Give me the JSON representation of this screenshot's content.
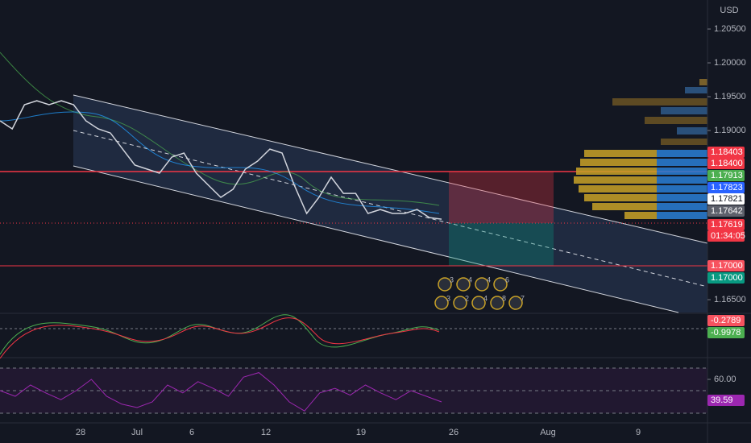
{
  "chart_data": {
    "type": "line",
    "currency": "USD",
    "color": "#d1d4dc",
    "values": [
      1.19143,
      1.19024,
      1.19381,
      1.1944,
      1.19381,
      1.1944,
      1.19381,
      1.19143,
      1.19024,
      1.18964,
      1.18726,
      1.18488,
      1.18429,
      1.18369,
      1.18607,
      1.18667,
      1.18369,
      1.1819,
      1.18012,
      1.18131,
      1.18429,
      1.18548,
      1.18726,
      1.18667,
      1.1819,
      1.17774,
      1.18012,
      1.1831,
      1.18071,
      1.18071,
      1.17774,
      1.17833,
      1.17774,
      1.17774,
      1.17833,
      1.17714,
      1.1769
    ],
    "ylim": [
      1.1631,
      1.20929
    ],
    "yticks": [
      {
        "value": 1.205,
        "label": "1.20500"
      },
      {
        "value": 1.2,
        "label": "1.20000"
      },
      {
        "value": 1.195,
        "label": "1.19500"
      },
      {
        "value": 1.19,
        "label": "1.19000"
      },
      {
        "value": 1.165,
        "label": "1.16500"
      }
    ],
    "x_labels": [
      "28",
      "Jul",
      "6",
      "12",
      "19",
      "26",
      "Aug",
      "9"
    ],
    "price_tags": [
      {
        "label": "1.18403",
        "color": "#f23645"
      },
      {
        "label": "1.18400",
        "color": "#f23645"
      },
      {
        "label": "1.17913",
        "color": "#4caf50"
      },
      {
        "label": "1.17823",
        "color": "#2962ff"
      },
      {
        "label": "1.17821",
        "color": "#ffffff"
      },
      {
        "label": "1.17642",
        "color": "#5d606b"
      },
      {
        "label": "1.17619",
        "color": "#f23645"
      },
      {
        "label": "01:34:05",
        "color": "#f23645"
      },
      {
        "label": "1.17000",
        "color": "#f7525f"
      },
      {
        "label": "1.17000",
        "color": "#089981"
      }
    ],
    "macd_tags": [
      {
        "label": "-0.2789",
        "color": "#f7525f"
      },
      {
        "label": "-0.9978",
        "color": "#4caf50"
      }
    ],
    "events": [
      "3",
      "4",
      "4",
      "6",
      "3",
      "2",
      "4",
      "8",
      "7"
    ],
    "rsi": {
      "color": "#9c27b0",
      "values": [
        50,
        45,
        55,
        48,
        42,
        50,
        60,
        45,
        38,
        35,
        40,
        55,
        48,
        58,
        52,
        45,
        62,
        66,
        55,
        40,
        32,
        48,
        52,
        46,
        55,
        48,
        42,
        50,
        45,
        40
      ],
      "ylim": [
        25,
        75
      ],
      "yticks": [
        {
          "value": 60,
          "label": "60.00"
        }
      ],
      "tag": "39.59"
    }
  }
}
